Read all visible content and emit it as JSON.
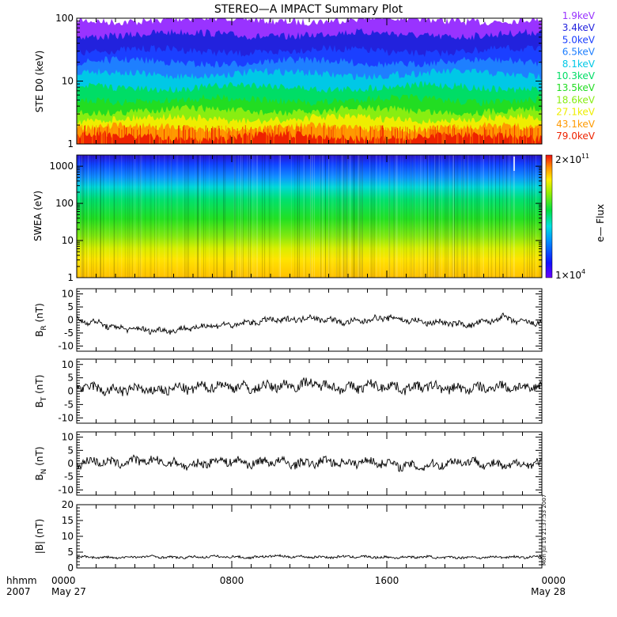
{
  "chart_data": [
    {
      "type": "line",
      "title": "STEREO—A IMPACT Summary Plot",
      "ylabel": "STE D0 (keV)",
      "yscale": "log",
      "ylim": [
        1,
        100
      ],
      "yticks": [
        "1",
        "10",
        "100"
      ],
      "legend_position": "right",
      "series": [
        {
          "name": "1.9keV",
          "color": "#9933ff",
          "level": 95
        },
        {
          "name": "3.4keV",
          "color": "#2222dd",
          "level": 55
        },
        {
          "name": "5.0keV",
          "color": "#1b3fff",
          "level": 30
        },
        {
          "name": "6.5keV",
          "color": "#1e7fff",
          "level": 20
        },
        {
          "name": "8.1keV",
          "color": "#00c8e6",
          "level": 13
        },
        {
          "name": "10.3keV",
          "color": "#00dd66",
          "level": 8
        },
        {
          "name": "13.5keV",
          "color": "#22dd22",
          "level": 5
        },
        {
          "name": "18.6keV",
          "color": "#88ee11",
          "level": 3.4
        },
        {
          "name": "27.1keV",
          "color": "#eeee00",
          "level": 2.5
        },
        {
          "name": "43.1keV",
          "color": "#ff9900",
          "level": 1.8
        },
        {
          "name": "79.0keV",
          "color": "#ee2200",
          "level": 1.3
        }
      ]
    },
    {
      "type": "heatmap",
      "ylabel": "SWEA (eV)",
      "yscale": "log",
      "ylim": [
        1,
        2000
      ],
      "yticks": [
        "1",
        "10",
        "100",
        "1000"
      ],
      "colorbar_label": "e— Flux",
      "colorbar_max": "2×10",
      "colorbar_max_exp": "11",
      "colorbar_min": "1×10",
      "colorbar_min_exp": "4"
    },
    {
      "type": "line",
      "ylabel": "B",
      "ylabel_sub": "R",
      "ylabel_unit": "(nT)",
      "ylim": [
        -12,
        12
      ],
      "yticks": [
        -10,
        -5,
        0,
        5,
        10
      ],
      "hours": [
        0,
        1,
        2,
        3,
        4,
        5,
        6,
        7,
        8,
        9,
        10,
        11,
        12,
        13,
        14,
        15,
        16,
        17,
        18,
        19,
        20,
        21,
        22,
        23,
        24
      ],
      "values": [
        0,
        -1,
        -3,
        -3.5,
        -4,
        -4,
        -3,
        -2,
        -2,
        -1,
        0,
        0,
        1,
        0,
        -1,
        0,
        1,
        0,
        -1,
        -1,
        -2,
        -1,
        1,
        -1,
        -1
      ]
    },
    {
      "type": "line",
      "ylabel": "B",
      "ylabel_sub": "T",
      "ylabel_unit": "(nT)",
      "ylim": [
        -12,
        12
      ],
      "yticks": [
        -10,
        -5,
        0,
        5,
        10
      ],
      "hours": [
        0,
        1,
        2,
        3,
        4,
        5,
        6,
        7,
        8,
        9,
        10,
        11,
        12,
        13,
        14,
        15,
        16,
        17,
        18,
        19,
        20,
        21,
        22,
        23,
        24
      ],
      "values": [
        2,
        1,
        0,
        1,
        0,
        1,
        1,
        2,
        2,
        1,
        2,
        2,
        3,
        2,
        1,
        2,
        2,
        1,
        2,
        1,
        1,
        1,
        2,
        1,
        2
      ]
    },
    {
      "type": "line",
      "ylabel": "B",
      "ylabel_sub": "N",
      "ylabel_unit": "(nT)",
      "ylim": [
        -12,
        12
      ],
      "yticks": [
        -10,
        -5,
        0,
        5,
        10
      ],
      "hours": [
        0,
        1,
        2,
        3,
        4,
        5,
        6,
        7,
        8,
        9,
        10,
        11,
        12,
        13,
        14,
        15,
        16,
        17,
        18,
        19,
        20,
        21,
        22,
        23,
        24
      ],
      "values": [
        0,
        1,
        0,
        1,
        1,
        0,
        -1,
        1,
        1,
        0,
        1,
        0,
        0,
        1,
        0,
        1,
        0,
        -1,
        -1,
        0,
        1,
        0,
        -1,
        0,
        0
      ]
    },
    {
      "type": "line",
      "ylabel": "|B| (nT)",
      "ylim": [
        0,
        20
      ],
      "yticks": [
        0,
        5,
        10,
        15,
        20
      ],
      "hours": [
        0,
        1,
        2,
        3,
        4,
        5,
        6,
        7,
        8,
        9,
        10,
        11,
        12,
        13,
        14,
        15,
        16,
        17,
        18,
        19,
        20,
        21,
        22,
        23,
        24
      ],
      "values": [
        3.5,
        3.4,
        3.2,
        3.5,
        3.6,
        3.3,
        3.4,
        3.6,
        3.5,
        3.3,
        3.8,
        3.6,
        3.5,
        3.4,
        3.6,
        3.5,
        3.3,
        3.4,
        3.5,
        3.2,
        3.4,
        3.3,
        3.5,
        3.4,
        3.5
      ]
    }
  ],
  "time_axis": {
    "hours_range": [
      0,
      24
    ],
    "row1_labels": [
      {
        "hour": 0,
        "text": "0000"
      },
      {
        "hour": 8,
        "text": "0800"
      },
      {
        "hour": 16,
        "text": "1600"
      },
      {
        "hour": 24,
        "text": "0000"
      }
    ],
    "row2_labels": [
      {
        "hour": 0,
        "text": "May 27"
      },
      {
        "hour": 24,
        "text": "May 28"
      }
    ],
    "corner_top": "hhmm",
    "corner_bottom": "2007"
  },
  "stamp": "Mon Jul 16 21:37:53 2007"
}
